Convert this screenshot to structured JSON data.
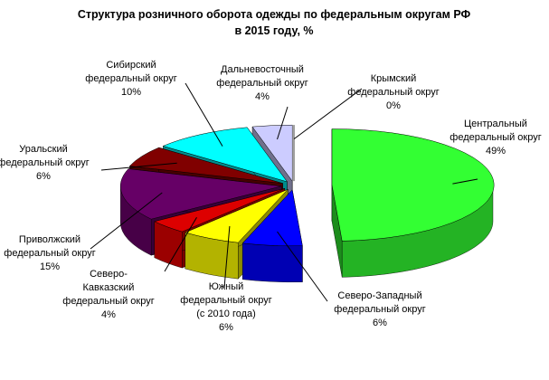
{
  "chart_data": {
    "type": "pie3d",
    "title": "Структура розничного оборота одежды по федеральным округам РФ\nв 2015 году, %",
    "categories": [
      "Центральный\nфедеральный округ",
      "Северо-Западный\nфедеральный округ",
      "Южный\nфедеральный  округ\n(с 2010 года)",
      "Северо-\nКавказский\nфедеральный округ",
      "Приволжский\nфедеральный округ",
      "Уральский\nфедеральный округ",
      "Сибирский\nфедеральный округ",
      "Дальневосточный\nфедеральный округ",
      "Крымский\nфедеральный округ"
    ],
    "values": [
      49,
      6,
      6,
      4,
      15,
      6,
      10,
      4,
      0
    ],
    "value_labels": [
      "49%",
      "6%",
      "6%",
      "4%",
      "15%",
      "6%",
      "10%",
      "4%",
      "0%"
    ],
    "colors": [
      "#33ff33",
      "#0000ff",
      "#ffff00",
      "#dd0000",
      "#660066",
      "#800000",
      "#00ffff",
      "#ccccff",
      "#333399"
    ]
  }
}
